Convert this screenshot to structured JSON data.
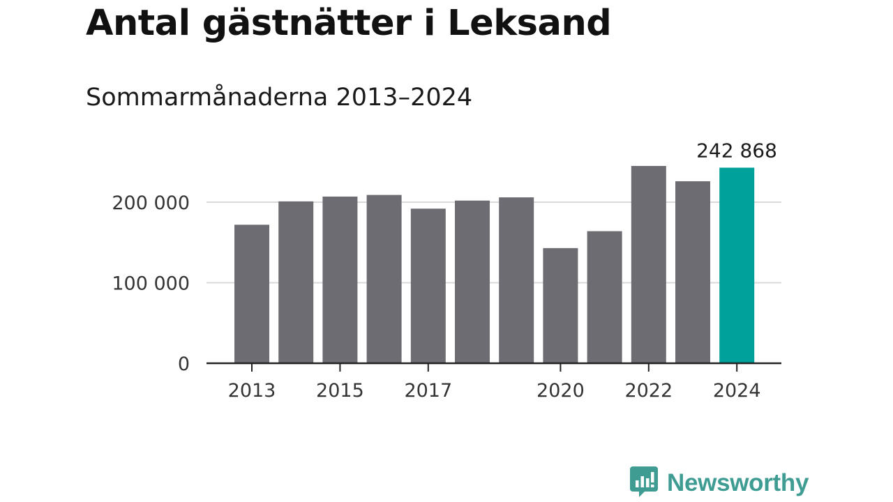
{
  "colors": {
    "bar": "#6d6c72",
    "highlight": "#00a19a",
    "grid": "#d9d9d9",
    "axis": "#222222",
    "logo": "#3e9c93"
  },
  "chart_data": {
    "type": "bar",
    "title": "Antal gästnätter i Leksand",
    "subtitle": "Sommarmånaderna 2013–2024",
    "xlabel": "",
    "ylabel": "",
    "categories": [
      "2013",
      "2014",
      "2015",
      "2016",
      "2017",
      "2018",
      "2019",
      "2020",
      "2021",
      "2022",
      "2023",
      "2024"
    ],
    "values": [
      172000,
      201000,
      207000,
      209000,
      192000,
      202000,
      206000,
      143000,
      164000,
      245000,
      226000,
      242868
    ],
    "highlight_index": 11,
    "ylim": [
      0,
      260000
    ],
    "yticks": [
      {
        "value": 0,
        "label": "0"
      },
      {
        "value": 100000,
        "label": "100 000"
      },
      {
        "value": 200000,
        "label": "200 000"
      }
    ],
    "xticks": [
      {
        "index": 0,
        "label": "2013"
      },
      {
        "index": 2,
        "label": "2015"
      },
      {
        "index": 4,
        "label": "2017"
      },
      {
        "index": 7,
        "label": "2020"
      },
      {
        "index": 9,
        "label": "2022"
      },
      {
        "index": 11,
        "label": "2024"
      }
    ],
    "annotations": [
      {
        "index": 11,
        "text": "242 868"
      }
    ],
    "grid": true,
    "legend": "none"
  },
  "logo": {
    "text": "Newsworthy",
    "icon": "newsworthy-bar-chart-icon"
  }
}
